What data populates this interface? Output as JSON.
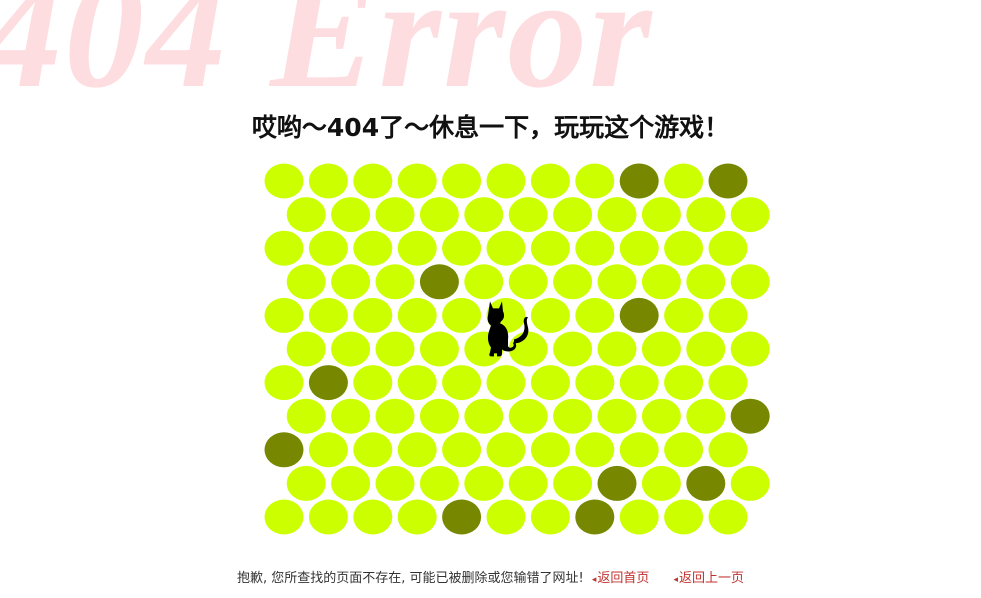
{
  "background_text": "404 Error",
  "title": "哎哟～404了～休息一下，玩玩这个游戏！",
  "footer": {
    "message": "抱歉, 您所查找的页面不存在, 可能已被删除或您输错了网址!",
    "home_link": "返回首页",
    "back_link": "返回上一页"
  },
  "colors": {
    "empty_cell": "#ccff00",
    "blocked_cell": "#778800",
    "cat": "#000000",
    "background_text": "#fddde0",
    "link": "#c0322f"
  },
  "game": {
    "columns": 11,
    "rows": 11,
    "blocked_cells": [
      [
        0,
        8
      ],
      [
        0,
        10
      ],
      [
        3,
        3
      ],
      [
        4,
        8
      ],
      [
        6,
        1
      ],
      [
        7,
        10
      ],
      [
        8,
        0
      ],
      [
        9,
        7
      ],
      [
        9,
        9
      ],
      [
        10,
        4
      ],
      [
        10,
        7
      ]
    ],
    "cat_position": [
      4,
      5
    ]
  }
}
